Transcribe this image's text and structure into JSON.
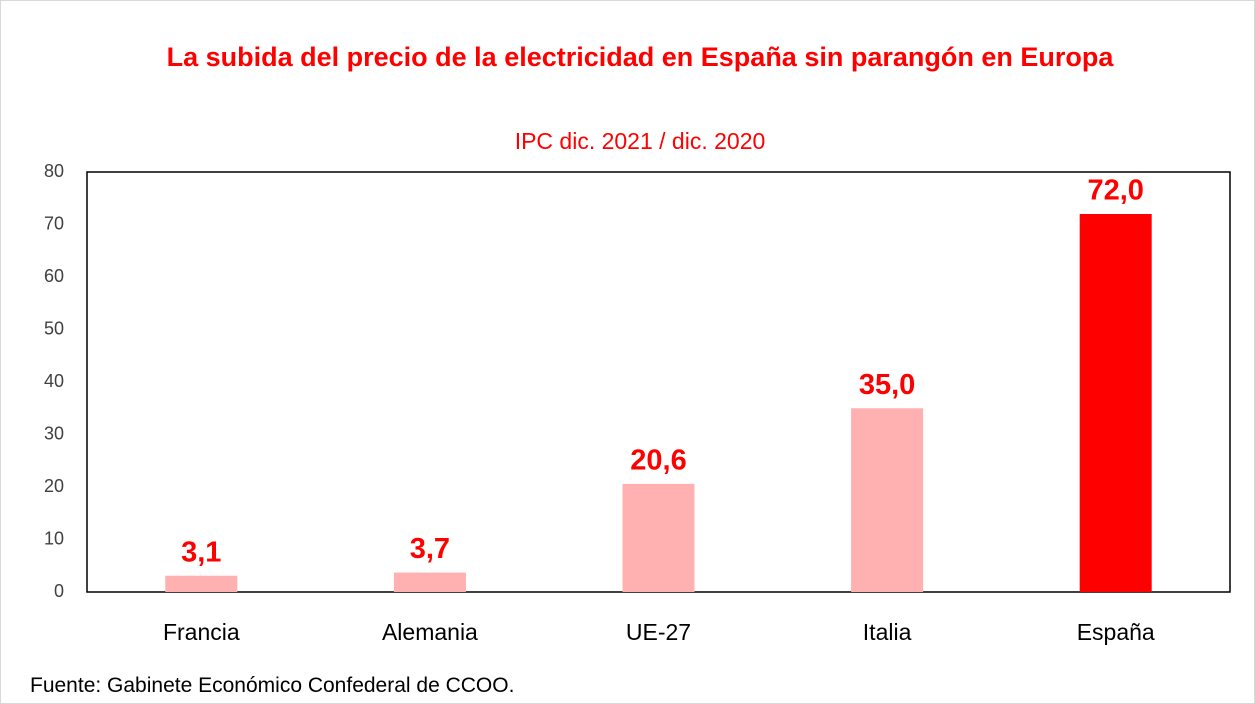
{
  "chart_data": {
    "type": "bar",
    "title": "La subida del precio de la electricidad en España sin parangón en Europa",
    "subtitle": "IPC dic. 2021 / dic. 2020",
    "categories": [
      "Francia",
      "Alemania",
      "UE-27",
      "Italia",
      "España"
    ],
    "values": [
      3.1,
      3.7,
      20.6,
      35.0,
      72.0
    ],
    "value_labels": [
      "3,1",
      "3,7",
      "20,6",
      "35,0",
      "72,0"
    ],
    "colors": [
      "#ffb0b0",
      "#ffb0b0",
      "#ffb0b0",
      "#ffb0b0",
      "#ff0000"
    ],
    "ylim": [
      0,
      80
    ],
    "yticks": [
      0,
      10,
      20,
      30,
      40,
      50,
      60,
      70,
      80
    ],
    "grid": false,
    "source": "Fuente: Gabinete Económico Confederal de CCOO."
  }
}
